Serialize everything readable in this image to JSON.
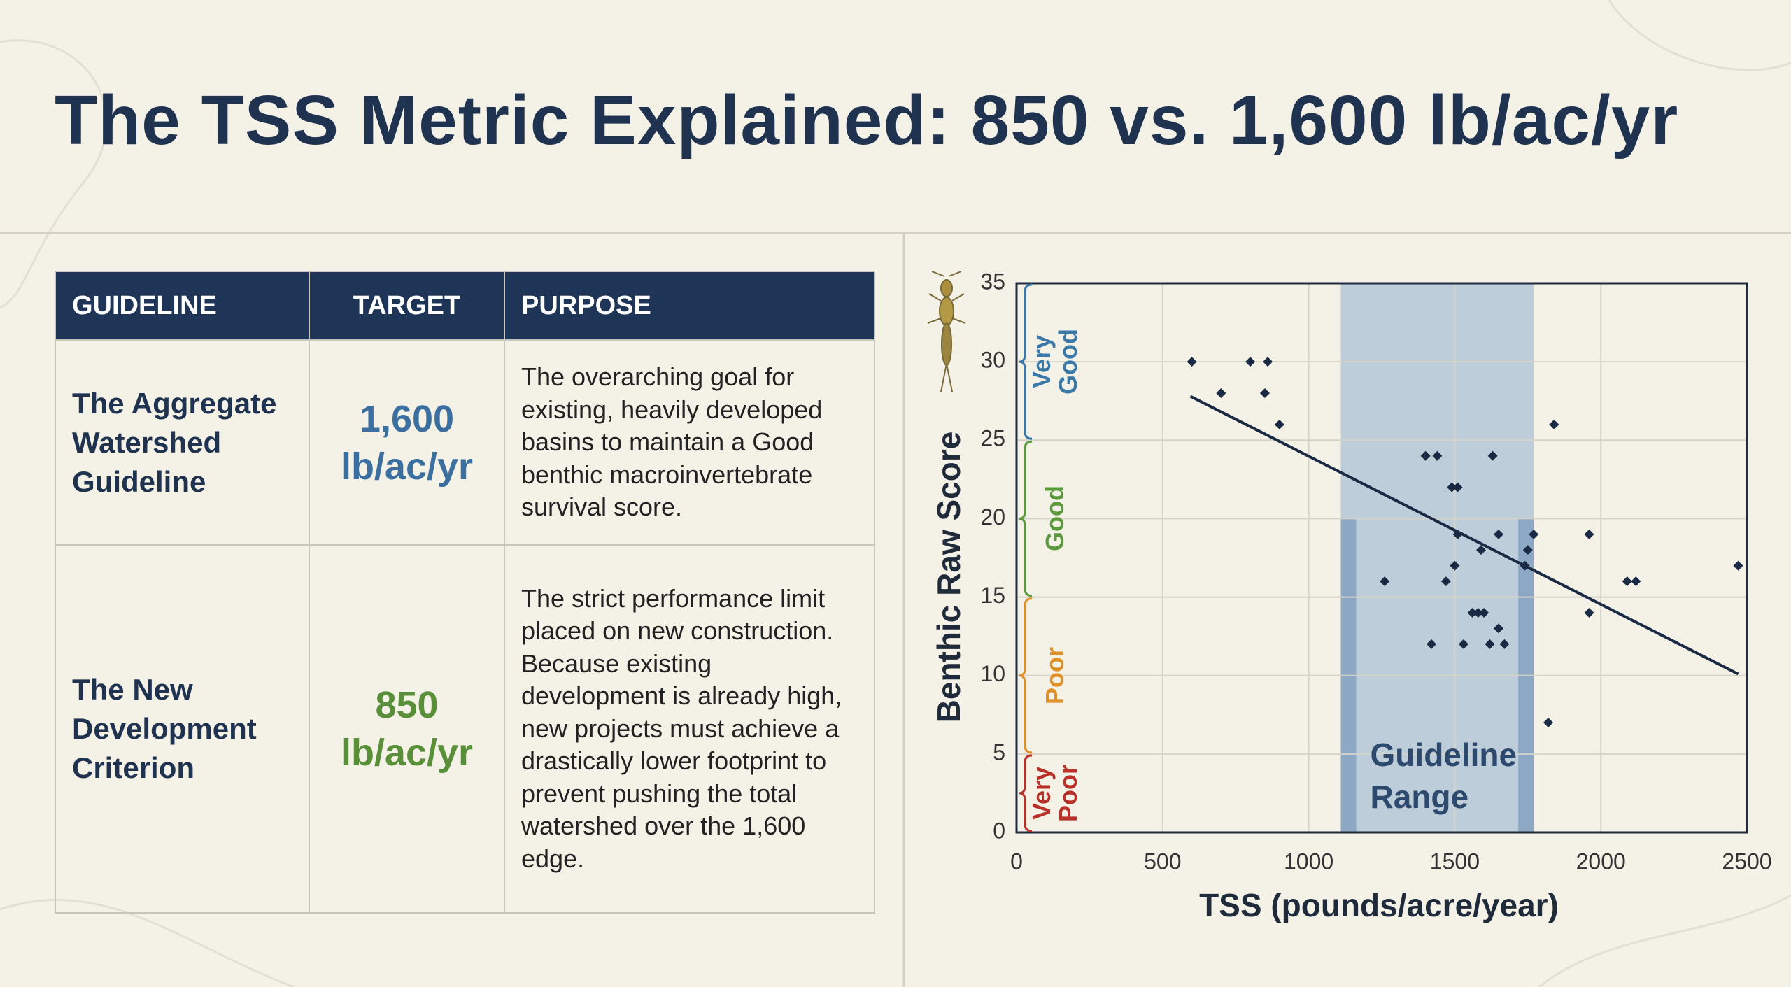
{
  "title": "The TSS Metric Explained: 850 vs. 1,600 lb/ac/yr",
  "table": {
    "headers": [
      "GUIDELINE",
      "TARGET",
      "PURPOSE"
    ],
    "rows": [
      [
        "The Aggregate Watershed Guideline",
        "1,600 lb/ac/yr",
        "The overarching goal for existing, heavily developed basins to maintain a Good benthic macroinvertebrate survival score."
      ],
      [
        "The New Development Criterion",
        "850 lb/ac/yr",
        "The strict performance limit placed on new construction. Because existing development is already high, new projects must achieve a drastically lower footprint to prevent pushing the total watershed over the 1,600 edge."
      ]
    ]
  },
  "chart_data": {
    "type": "scatter",
    "x_label": "TSS (pounds/acre/year)",
    "y_label": "Benthic Raw Score",
    "x": [
      600,
      700,
      800,
      860,
      850,
      900,
      1260,
      1400,
      1440,
      1490,
      1510,
      1420,
      1470,
      1500,
      1510,
      1530,
      1560,
      1580,
      1600,
      1590,
      1630,
      1650,
      1650,
      1620,
      1670,
      1740,
      1750,
      1770,
      1820,
      1840,
      1960,
      1960,
      2090,
      2120,
      2470
    ],
    "values": [
      30,
      28,
      30,
      30,
      28,
      26,
      16,
      24,
      24,
      22,
      22,
      12,
      16,
      17,
      19,
      12,
      14,
      14,
      14,
      18,
      24,
      19,
      13,
      12,
      12,
      17,
      18,
      19,
      7,
      26,
      19,
      14,
      16,
      16,
      17
    ],
    "color": "#1a2a44",
    "xlim": [
      0,
      2500
    ],
    "xticks": [
      0,
      500,
      1000,
      1500,
      2000,
      2500
    ],
    "ylim": [
      0,
      35
    ],
    "yticks": [
      0,
      5,
      10,
      15,
      20,
      25,
      30,
      35
    ],
    "grid": true,
    "trend": {
      "x": [
        595,
        2470
      ],
      "values": [
        27.8,
        10.1
      ],
      "color": "#1a2a44"
    },
    "guideline_range": {
      "label": "Guideline Range",
      "range": [
        1110,
        1770
      ],
      "color": "#8fb0cf"
    },
    "bands": [
      {
        "label": "Very Good",
        "from": 25,
        "to": 35,
        "color": "#3a78a8"
      },
      {
        "label": "Good",
        "from": 15,
        "to": 25,
        "color": "#5a9a3c"
      },
      {
        "label": "Poor",
        "from": 5,
        "to": 15,
        "color": "#e0902a"
      },
      {
        "label": "Very Poor",
        "from": 0,
        "to": 5,
        "color": "#b8322a"
      }
    ]
  }
}
